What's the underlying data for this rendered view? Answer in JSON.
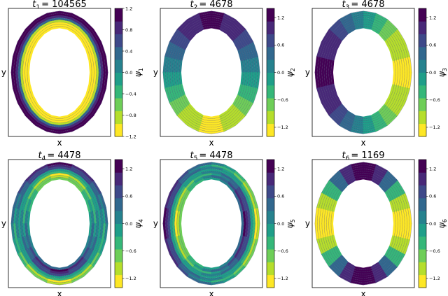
{
  "colors": {
    "scale": [
      "#fde725",
      "#b5de2b",
      "#6ece58",
      "#35b779",
      "#1f9e89",
      "#26828e",
      "#31688e",
      "#3e4989",
      "#482878",
      "#440154"
    ],
    "axes_edge": "#000000",
    "background": "#ffffff"
  },
  "chart_data": [
    {
      "type": "heatmap",
      "title_main": "t",
      "title_sub": "1",
      "title_value": "= 104565",
      "xlabel": "x",
      "ylabel": "y",
      "colorbar": {
        "label_main": "ψ",
        "label_sub": "1",
        "ticks": [
          "1.2",
          "0.8",
          "0.4",
          "0.0",
          "−0.4",
          "−0.8",
          "−1.2"
        ],
        "range": [
          -1.2,
          1.2
        ]
      },
      "pattern": {
        "kind": "radial",
        "values": [
          1.0,
          1.0,
          0.9,
          0.3,
          -0.9,
          -1.0,
          -1.1,
          -1.1
        ]
      }
    },
    {
      "type": "heatmap",
      "title_main": "t",
      "title_sub": "2",
      "title_value": "= 4678",
      "xlabel": "x",
      "ylabel": "y",
      "colorbar": {
        "label_main": "ψ",
        "label_sub": "2",
        "ticks": [
          "1.2",
          "0.6",
          "0.0",
          "−0.6",
          "−1.2"
        ],
        "range": [
          -1.4,
          1.4
        ]
      },
      "pattern": {
        "kind": "angular_cos",
        "phase": 90,
        "values": [
          0.0
        ]
      }
    },
    {
      "type": "heatmap",
      "title_main": "t",
      "title_sub": "3",
      "title_value": "= 4678",
      "xlabel": "x",
      "ylabel": "y",
      "colorbar": {
        "label_main": "ψ",
        "label_sub": "3",
        "ticks": [
          "1.2",
          "0.6",
          "0.0",
          "−0.6",
          "−1.2"
        ],
        "range": [
          -1.4,
          1.4
        ]
      },
      "pattern": {
        "kind": "angular_cos",
        "phase": 180,
        "values": [
          0.0
        ]
      }
    },
    {
      "type": "heatmap",
      "title_main": "t",
      "title_sub": "4",
      "title_value": "= 4478",
      "xlabel": "x",
      "ylabel": "y",
      "colorbar": {
        "label_main": "ψ",
        "label_sub": "4",
        "ticks": [
          "1.2",
          "0.6",
          "0.0",
          "−0.6",
          "−1.2"
        ],
        "range": [
          -1.4,
          1.4
        ]
      },
      "pattern": {
        "kind": "ring_angle",
        "phase": 90,
        "values": [
          1.0,
          1.0,
          0.6,
          0.0,
          -0.6,
          -1.0,
          -1.0,
          -0.6
        ]
      }
    },
    {
      "type": "heatmap",
      "title_main": "t",
      "title_sub": "5",
      "title_value": "= 4478",
      "xlabel": "x",
      "ylabel": "y",
      "colorbar": {
        "label_main": "ψ",
        "label_sub": "5",
        "ticks": [
          "1.2",
          "0.6",
          "0.0",
          "−0.6",
          "−1.2"
        ],
        "range": [
          -1.4,
          1.4
        ]
      },
      "pattern": {
        "kind": "ring_angle",
        "phase": 180,
        "values": [
          1.0,
          1.0,
          0.6,
          0.0,
          -0.6,
          -1.0,
          -1.0,
          -0.6
        ]
      }
    },
    {
      "type": "heatmap",
      "title_main": "t",
      "title_sub": "6",
      "title_value": "= 1169",
      "xlabel": "x",
      "ylabel": "y",
      "colorbar": {
        "label_main": "ψ",
        "label_sub": "6",
        "ticks": [
          "1.2",
          "0.6",
          "0.0",
          "−0.6",
          "−1.2"
        ],
        "range": [
          -1.4,
          1.4
        ]
      },
      "pattern": {
        "kind": "angular_cos2",
        "phase": 90,
        "values": [
          0.0
        ]
      }
    }
  ]
}
